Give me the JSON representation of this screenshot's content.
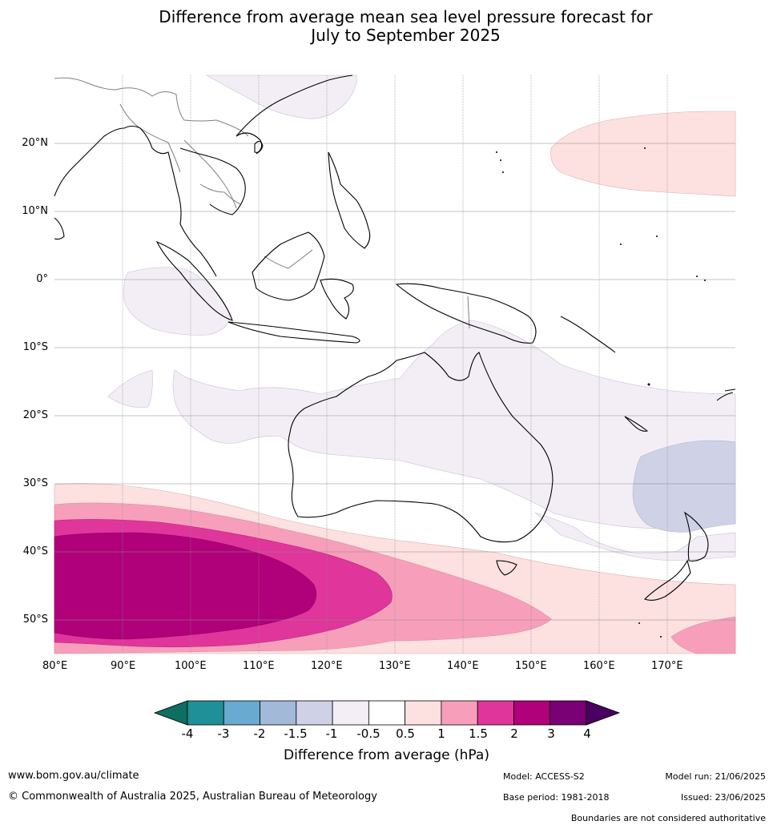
{
  "title_line1": "Difference from average mean sea level pressure forecast for",
  "title_line2": "July to September 2025",
  "lat_labels": [
    "20°N",
    "10°N",
    "0°",
    "10°S",
    "20°S",
    "30°S",
    "40°S",
    "50°S"
  ],
  "lon_labels": [
    "80°E",
    "90°E",
    "100°E",
    "110°E",
    "120°E",
    "130°E",
    "140°E",
    "150°E",
    "160°E",
    "170°E"
  ],
  "colorbar": {
    "ticks": [
      "-4",
      "-3",
      "-2",
      "-1.5",
      "-1",
      "-0.5",
      "0.5",
      "1",
      "1.5",
      "2",
      "3",
      "4"
    ],
    "colors": [
      "#0e6e62",
      "#1f8f98",
      "#68aad0",
      "#a3b9d8",
      "#cfd2e6",
      "#f3eef6",
      "#ffffff",
      "#fde0e0",
      "#f79fba",
      "#e0359a",
      "#b0007a",
      "#7a0075",
      "#4a0060"
    ],
    "label": "Difference from average (hPa)"
  },
  "footer": {
    "website": "www.bom.gov.au/climate",
    "copyright": "© Commonwealth of Australia 2025, Australian Bureau of Meteorology",
    "model": "Model: ACCESS-S2",
    "base_period": "Base period: 1981-2018",
    "model_run": "Model run: 21/06/2025",
    "issued": "Issued: 23/06/2025",
    "disclaimer": "Boundaries are not considered authoritative"
  }
}
